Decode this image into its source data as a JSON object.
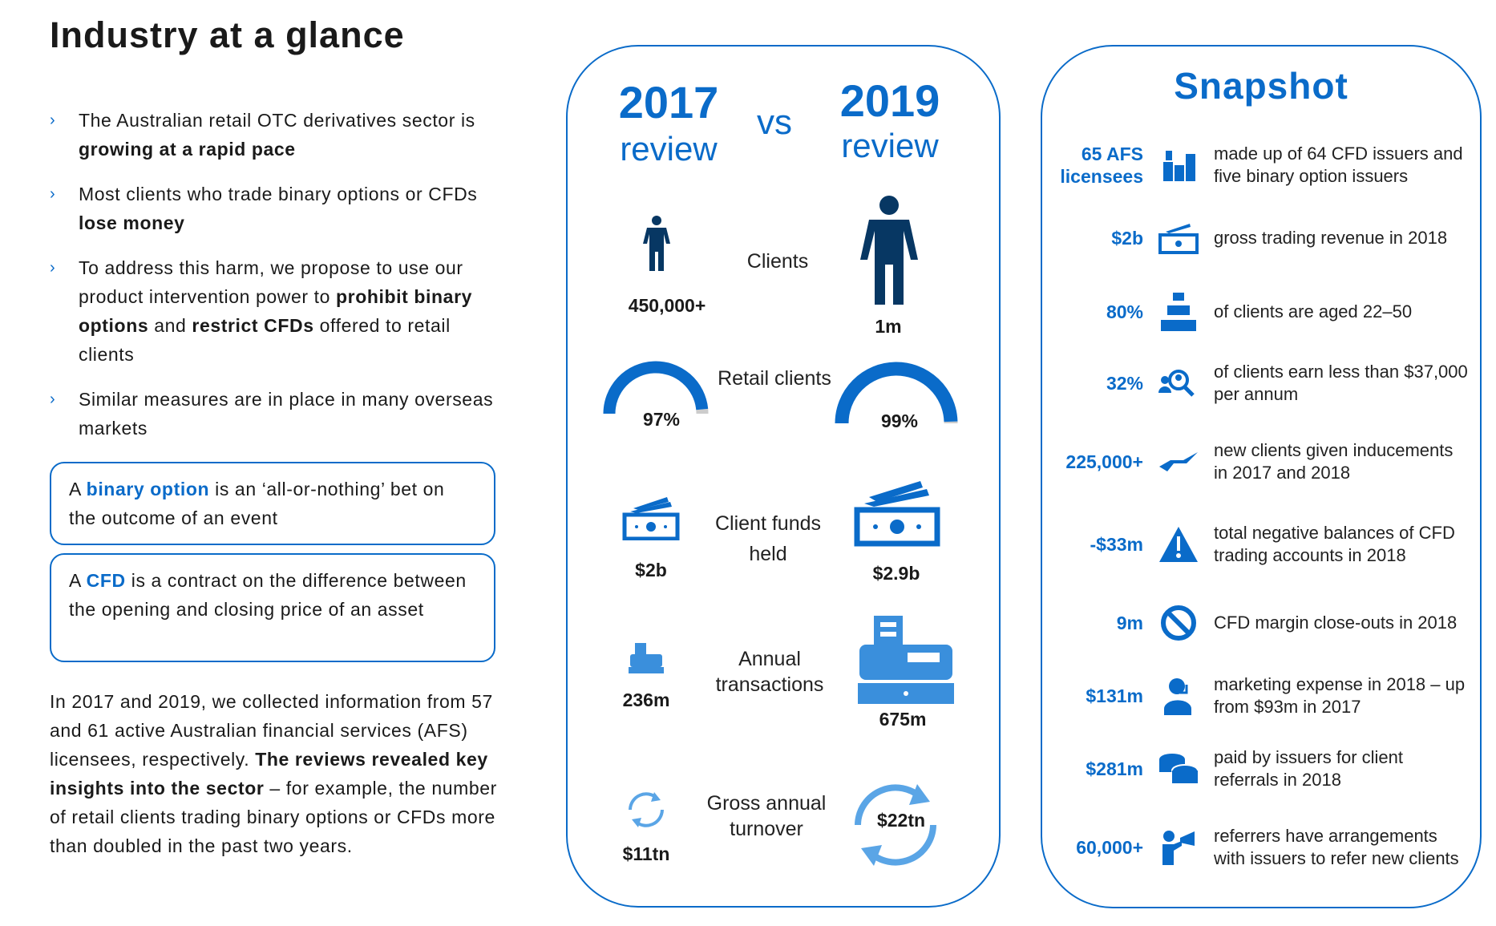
{
  "title": "Industry at a glance",
  "bullets": [
    {
      "pre": "The Australian retail OTC derivatives sector is ",
      "bold": "growing at a rapid pace"
    },
    {
      "pre": "Most clients who trade binary options or CFDs ",
      "bold": "lose money"
    },
    {
      "pre": "To address this harm, we propose to use our product intervention power to ",
      "bold": "prohibit binary options",
      "mid": " and ",
      "bold2": "restrict CFDs",
      "post": " offered to retail clients"
    },
    {
      "pre": "Similar measures are in place in many overseas markets"
    }
  ],
  "definitions": [
    {
      "pre": "A ",
      "term": "binary option",
      "post": " is an ‘all-or-nothing’ bet on the outcome of an event"
    },
    {
      "pre": "A ",
      "term": "CFD",
      "post": " is a contract on the difference between the opening and closing price of an asset"
    }
  ],
  "paragraph": {
    "pre": "In 2017 and 2019, we collected information from 57 and 61 active Australian financial services (AFS) licensees, respectively. ",
    "bold": "The reviews revealed key insights into the sector",
    "post": " – for example, the number of retail clients trading binary options or CFDs more than doubled in the past two years."
  },
  "comparison": {
    "left": {
      "year": "2017",
      "sub": "review"
    },
    "vs": "vs",
    "right": {
      "year": "2019",
      "sub": "review"
    },
    "rows": [
      {
        "label": "Clients",
        "v2017": "450,000+",
        "v2019": "1m"
      },
      {
        "label": "Retail clients",
        "v2017": "97%",
        "v2019": "99%",
        "pct2017": 97,
        "pct2019": 99
      },
      {
        "label": "Client funds held",
        "v2017": "$2b",
        "v2019": "$2.9b"
      },
      {
        "label": "Annual transactions",
        "v2017": "236m",
        "v2019": "675m"
      },
      {
        "label": "Gross annual turnover",
        "v2017": "$11tn",
        "v2019": "$22tn"
      }
    ]
  },
  "snapshot": {
    "title": "Snapshot",
    "items": [
      {
        "value": "65 AFS licensees",
        "icon": "buildings-icon",
        "text": "made up of 64 CFD issuers and five binary option issuers"
      },
      {
        "value": "$2b",
        "icon": "cash-icon",
        "text": "gross trading revenue in 2018"
      },
      {
        "value": "80%",
        "icon": "crowd-icon",
        "text": "of clients are aged 22–50"
      },
      {
        "value": "32%",
        "icon": "people-search-icon",
        "text": "of clients earn less than $37,000 per annum"
      },
      {
        "value": "225,000+",
        "icon": "hand-icon",
        "text": "new clients given inducements in 2017 and 2018"
      },
      {
        "value": "-$33m",
        "icon": "warning-icon",
        "text": "total negative balances of CFD trading accounts in 2018"
      },
      {
        "value": "9m",
        "icon": "prohibited-icon",
        "text": "CFD margin close-outs in 2018"
      },
      {
        "value": "$131m",
        "icon": "headset-person-icon",
        "text": "marketing expense in 2018 – up from $93m in 2017"
      },
      {
        "value": "$281m",
        "icon": "coins-icon",
        "text": "paid by issuers for client referrals in 2018"
      },
      {
        "value": "60,000+",
        "icon": "megaphone-person-icon",
        "text": "referrers have arrangements with issuers to refer new clients"
      }
    ]
  },
  "colors": {
    "accent": "#0a6bc9",
    "navy": "#073763"
  }
}
